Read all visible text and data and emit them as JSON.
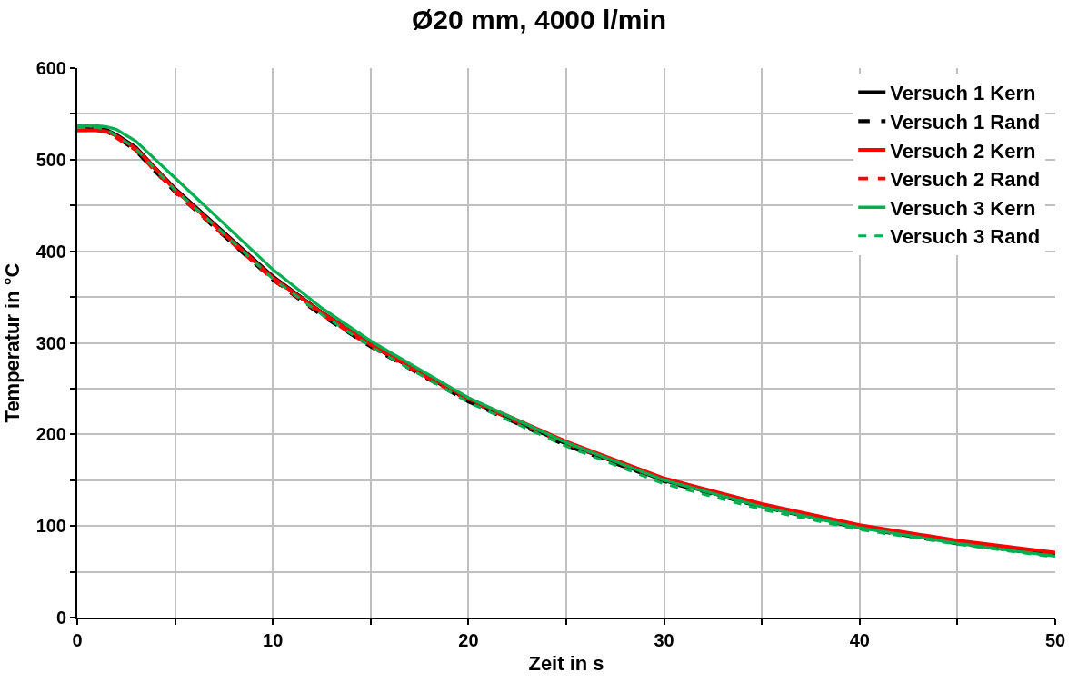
{
  "chart_data": {
    "type": "line",
    "title": "Ø20 mm, 4000 l/min",
    "xlabel": "Zeit in s",
    "ylabel": "Temperatur in °C",
    "x": [
      0,
      1,
      1.5,
      2,
      3,
      4,
      5,
      7.5,
      10,
      12.5,
      15,
      20,
      25,
      30,
      35,
      40,
      45,
      50
    ],
    "series": [
      {
        "name": "Versuch 1 Kern",
        "color": "#000000",
        "line_style": "solid",
        "values": [
          533,
          533,
          532,
          527,
          513,
          490,
          468,
          420,
          372,
          333,
          298,
          238,
          190,
          150,
          122,
          99,
          82,
          69
        ]
      },
      {
        "name": "Versuch 1 Rand",
        "color": "#000000",
        "line_style": "dashed",
        "values": [
          533,
          533,
          531,
          525,
          510,
          487,
          465,
          417,
          369,
          330,
          296,
          236,
          188,
          149,
          121,
          98,
          81,
          68
        ]
      },
      {
        "name": "Versuch 2 Kern",
        "color": "#ff0000",
        "line_style": "solid",
        "values": [
          532,
          532,
          531,
          526,
          512,
          490,
          467,
          419,
          371,
          333,
          298,
          239,
          192,
          152,
          124,
          101,
          84,
          71
        ]
      },
      {
        "name": "Versuch 2 Rand",
        "color": "#ff0000",
        "line_style": "dashed",
        "values": [
          532,
          532,
          530,
          524,
          510,
          487,
          465,
          417,
          369,
          331,
          296,
          237,
          190,
          150,
          122,
          99,
          82,
          69
        ]
      },
      {
        "name": "Versuch 3 Kern",
        "color": "#00b050",
        "line_style": "solid",
        "values": [
          537,
          537,
          536,
          533,
          520,
          500,
          480,
          430,
          380,
          338,
          302,
          240,
          191,
          150,
          121,
          98,
          81,
          67
        ]
      },
      {
        "name": "Versuch 3 Rand",
        "color": "#00b050",
        "line_style": "dashed",
        "values": [
          535,
          535,
          533,
          526,
          512,
          489,
          467,
          419,
          370,
          331,
          296,
          235,
          187,
          146,
          118,
          96,
          80,
          66
        ]
      }
    ],
    "xlim": [
      0,
      50
    ],
    "xticks": [
      0,
      {
        "value": 5,
        "label": null
      },
      10,
      {
        "value": 15,
        "label": null
      },
      20,
      {
        "value": 25,
        "label": null
      },
      30,
      {
        "value": 35,
        "label": null
      },
      40,
      {
        "value": 45,
        "label": null
      },
      50
    ],
    "ylim": [
      0,
      600
    ],
    "yticks": [
      0,
      {
        "value": 50,
        "label": null
      },
      100,
      {
        "value": 150,
        "label": null
      },
      200,
      {
        "value": 250,
        "label": null
      },
      300,
      {
        "value": 350,
        "label": null
      },
      400,
      {
        "value": 450,
        "label": null
      },
      500,
      {
        "value": 550,
        "label": null
      },
      600
    ],
    "grid": true,
    "legend": "top right",
    "marker": "none"
  }
}
